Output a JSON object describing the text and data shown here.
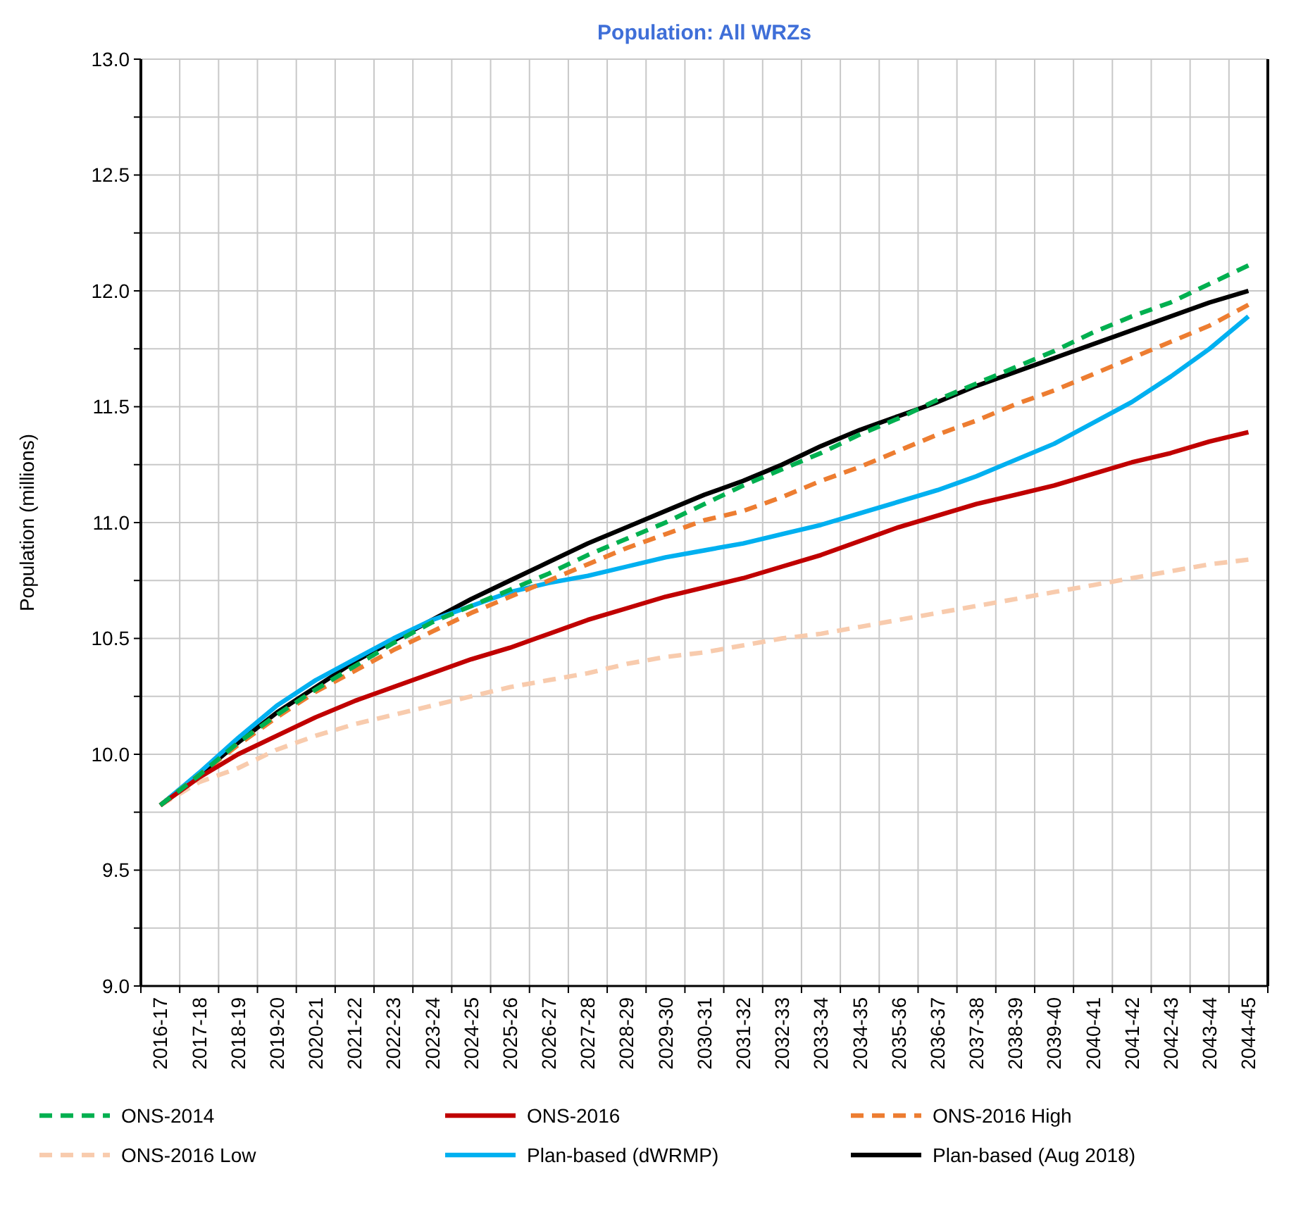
{
  "chart_data": {
    "type": "line",
    "title": "Population: All WRZs",
    "ylabel": "Population (millions)",
    "categories": [
      "2016-17",
      "2017-18",
      "2018-19",
      "2019-20",
      "2020-21",
      "2021-22",
      "2022-23",
      "2023-24",
      "2024-25",
      "2025-26",
      "2026-27",
      "2027-28",
      "2028-29",
      "2029-30",
      "2030-31",
      "2031-32",
      "2032-33",
      "2033-34",
      "2034-35",
      "2035-36",
      "2036-37",
      "2037-38",
      "2038-39",
      "2039-40",
      "2040-41",
      "2041-42",
      "2042-43",
      "2043-44",
      "2044-45"
    ],
    "ylim": [
      9,
      13
    ],
    "yticks": [
      {
        "value": 9,
        "label": "9.0"
      },
      {
        "value": 9.25,
        "label": null
      },
      {
        "value": 9.5,
        "label": "9.5"
      },
      {
        "value": 9.75,
        "label": null
      },
      {
        "value": 10,
        "label": "10.0"
      },
      {
        "value": 10.25,
        "label": null
      },
      {
        "value": 10.5,
        "label": "10.5"
      },
      {
        "value": 10.75,
        "label": null
      },
      {
        "value": 11,
        "label": "11.0"
      },
      {
        "value": 11.25,
        "label": null
      },
      {
        "value": 11.5,
        "label": "11.5"
      },
      {
        "value": 11.75,
        "label": null
      },
      {
        "value": 12,
        "label": "12.0"
      },
      {
        "value": 12.25,
        "label": null
      },
      {
        "value": 12.5,
        "label": "12.5"
      },
      {
        "value": 12.75,
        "label": null
      },
      {
        "value": 13,
        "label": "13.0"
      }
    ],
    "grid": true,
    "legend": "bottom",
    "marker": "none",
    "series": [
      {
        "name": "ONS-2014",
        "color": "#00b050",
        "line_style": "dashed",
        "values": [
          9.78,
          9.91,
          10.05,
          10.17,
          10.28,
          10.38,
          10.48,
          10.57,
          10.64,
          10.71,
          10.78,
          10.86,
          10.93,
          11.0,
          11.08,
          11.16,
          11.23,
          11.3,
          11.38,
          11.45,
          11.53,
          11.6,
          11.67,
          11.74,
          11.82,
          11.89,
          11.95,
          12.03,
          12.11
        ]
      },
      {
        "name": "ONS-2016",
        "color": "#c00000",
        "line_style": "solid",
        "values": [
          9.78,
          9.9,
          10.0,
          10.08,
          10.16,
          10.23,
          10.29,
          10.35,
          10.41,
          10.46,
          10.52,
          10.58,
          10.63,
          10.68,
          10.72,
          10.76,
          10.81,
          10.86,
          10.92,
          10.98,
          11.03,
          11.08,
          11.12,
          11.16,
          11.21,
          11.26,
          11.3,
          11.35,
          11.39
        ]
      },
      {
        "name": "ONS-2016 High",
        "color": "#ed7d31",
        "line_style": "dashed",
        "values": [
          9.78,
          9.91,
          10.04,
          10.16,
          10.27,
          10.36,
          10.45,
          10.53,
          10.61,
          10.68,
          10.75,
          10.82,
          10.89,
          10.95,
          11.01,
          11.05,
          11.11,
          11.18,
          11.24,
          11.31,
          11.38,
          11.44,
          11.51,
          11.57,
          11.64,
          11.71,
          11.78,
          11.85,
          11.94
        ]
      },
      {
        "name": "ONS-2016 Low",
        "color": "#f8cbad",
        "line_style": "dashed",
        "values": [
          9.78,
          9.88,
          9.94,
          10.02,
          10.08,
          10.13,
          10.17,
          10.21,
          10.25,
          10.29,
          10.32,
          10.35,
          10.39,
          10.42,
          10.44,
          10.47,
          10.5,
          10.52,
          10.55,
          10.58,
          10.61,
          10.64,
          10.67,
          10.7,
          10.73,
          10.76,
          10.79,
          10.82,
          10.84
        ]
      },
      {
        "name": "Plan-based (dWRMP)",
        "color": "#00b0f0",
        "line_style": "solid",
        "values": [
          9.78,
          9.92,
          10.07,
          10.21,
          10.32,
          10.41,
          10.5,
          10.58,
          10.64,
          10.7,
          10.74,
          10.77,
          10.81,
          10.85,
          10.88,
          10.91,
          10.95,
          10.99,
          11.04,
          11.09,
          11.14,
          11.2,
          11.27,
          11.34,
          11.43,
          11.52,
          11.63,
          11.75,
          11.89
        ]
      },
      {
        "name": "Plan-based (Aug 2018)",
        "color": "#000000",
        "line_style": "solid",
        "values": [
          9.78,
          9.91,
          10.05,
          10.18,
          10.29,
          10.4,
          10.49,
          10.58,
          10.67,
          10.75,
          10.83,
          10.91,
          10.98,
          11.05,
          11.12,
          11.18,
          11.25,
          11.33,
          11.4,
          11.46,
          11.52,
          11.59,
          11.65,
          11.71,
          11.77,
          11.83,
          11.89,
          11.95,
          12.0
        ]
      }
    ]
  }
}
